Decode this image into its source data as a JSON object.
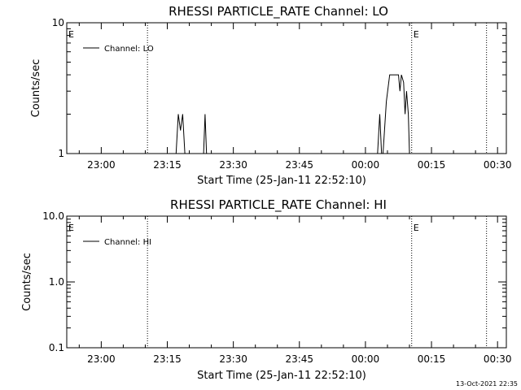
{
  "footer_date": "13-Oct-2021 22:35",
  "chart_data": [
    {
      "type": "line",
      "title": "RHESSI PARTICLE_RATE Channel: LO",
      "xlabel": "Start Time (25-Jan-11 22:52:10)",
      "ylabel": "Counts/sec",
      "yscale": "log",
      "xlim": [
        "22:52:10",
        "00:32:00"
      ],
      "ylim": [
        1,
        10
      ],
      "x_ticks": [
        "23:00",
        "23:15",
        "23:30",
        "23:45",
        "00:00",
        "00:15",
        "00:30"
      ],
      "y_ticks": [
        "1",
        "10"
      ],
      "legend": {
        "label": "Channel: LO",
        "placement": "top-left"
      },
      "event_markers": [
        {
          "time": "23:10:30",
          "label": "E"
        },
        {
          "time": "00:10:30",
          "label": ""
        },
        {
          "time": "00:27:30",
          "label": ""
        }
      ],
      "corner_labels": [
        {
          "time": "22:52:10",
          "label": "E"
        },
        {
          "time": "00:10:30",
          "label": "E"
        }
      ],
      "series": [
        {
          "name": "Channel: LO",
          "points": [
            [
              "22:52:10",
              1
            ],
            [
              "23:17:00",
              1
            ],
            [
              "23:17:30",
              2
            ],
            [
              "23:18:00",
              1.5
            ],
            [
              "23:18:30",
              2
            ],
            [
              "23:19:00",
              1
            ],
            [
              "23:23:15",
              1
            ],
            [
              "23:23:35",
              2
            ],
            [
              "23:23:55",
              1
            ],
            [
              "00:02:45",
              1
            ],
            [
              "00:03:15",
              2
            ],
            [
              "00:03:40",
              1
            ],
            [
              "00:04:00",
              1
            ],
            [
              "00:04:45",
              2.5
            ],
            [
              "00:05:30",
              4
            ],
            [
              "00:07:30",
              4
            ],
            [
              "00:07:50",
              3
            ],
            [
              "00:08:10",
              4
            ],
            [
              "00:08:40",
              3.5
            ],
            [
              "00:09:00",
              2
            ],
            [
              "00:09:20",
              3
            ],
            [
              "00:09:45",
              2
            ],
            [
              "00:10:00",
              1
            ],
            [
              "00:32:00",
              1
            ]
          ]
        }
      ]
    },
    {
      "type": "line",
      "title": "RHESSI PARTICLE_RATE Channel: HI",
      "xlabel": "Start Time (25-Jan-11 22:52:10)",
      "ylabel": "Counts/sec",
      "yscale": "log",
      "xlim": [
        "22:52:10",
        "00:32:00"
      ],
      "ylim": [
        0.1,
        10
      ],
      "x_ticks": [
        "23:00",
        "23:15",
        "23:30",
        "23:45",
        "00:00",
        "00:15",
        "00:30"
      ],
      "y_ticks": [
        "0.1",
        "1.0",
        "10.0"
      ],
      "legend": {
        "label": "Channel: HI",
        "placement": "top-left"
      },
      "event_markers": [
        {
          "time": "23:10:30",
          "label": ""
        },
        {
          "time": "00:10:30",
          "label": ""
        },
        {
          "time": "00:27:30",
          "label": ""
        }
      ],
      "corner_labels": [
        {
          "time": "22:52:10",
          "label": "E"
        },
        {
          "time": "00:10:30",
          "label": "E"
        }
      ],
      "series": [
        {
          "name": "Channel: HI",
          "points": []
        }
      ]
    }
  ]
}
